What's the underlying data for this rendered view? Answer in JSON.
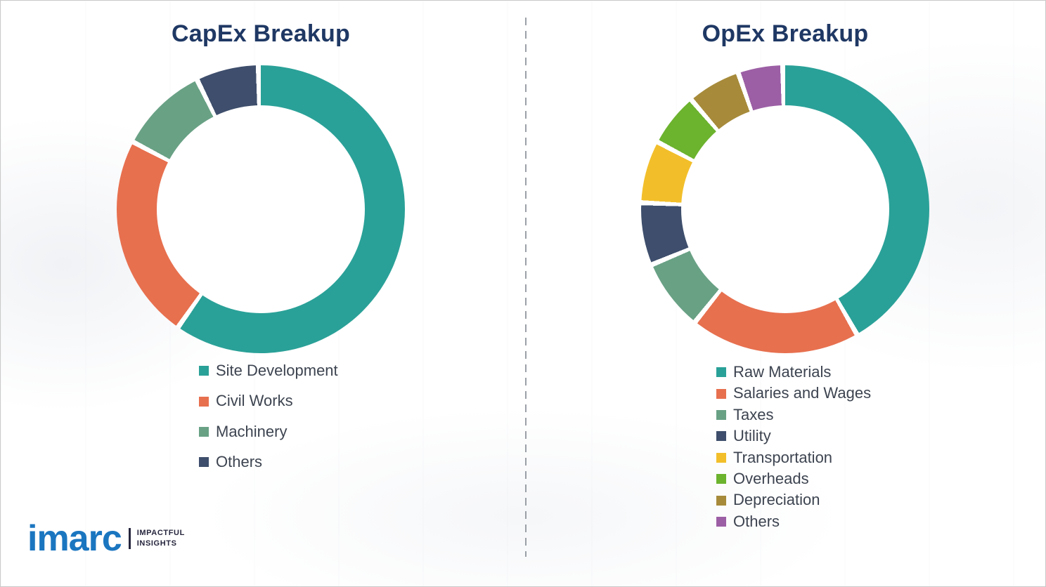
{
  "charts": {
    "capex_title": "CapEx Breakup",
    "opex_title": "OpEx Breakup"
  },
  "chart_data": [
    {
      "type": "pie",
      "donut": true,
      "title": "CapEx Breakup",
      "labels": [
        "Site Development",
        "Civil Works",
        "Machinery",
        "Others"
      ],
      "values": [
        60,
        23,
        10,
        7
      ],
      "colors": [
        "#2aa198",
        "#e7704f",
        "#69a185",
        "#3e4e6c"
      ],
      "legend_position": "bottom-left",
      "start_angle": "top",
      "direction": "clockwise"
    },
    {
      "type": "pie",
      "donut": true,
      "title": "OpEx Breakup",
      "labels": [
        "Raw Materials",
        "Salaries and Wages",
        "Taxes",
        "Utility",
        "Transportation",
        "Overheads",
        "Depreciation",
        "Others"
      ],
      "values": [
        42,
        19,
        8,
        7,
        7,
        6,
        6,
        5
      ],
      "colors": [
        "#2aa198",
        "#e7704f",
        "#69a185",
        "#3e4e6c",
        "#f2bf2b",
        "#6cb32e",
        "#a78b3b",
        "#9c5fa5"
      ],
      "legend_position": "bottom-left",
      "start_angle": "top",
      "direction": "clockwise"
    }
  ],
  "logo": {
    "brand": "imarc",
    "tagline_line1": "IMPACTFUL",
    "tagline_line2": "INSIGHTS"
  }
}
